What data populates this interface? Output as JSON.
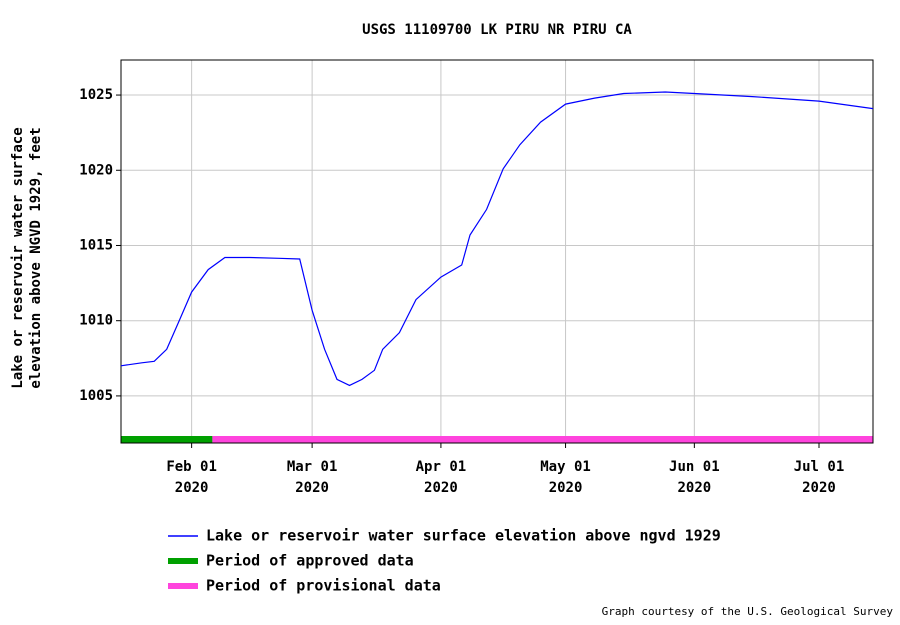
{
  "chart_data": {
    "type": "line",
    "title": "USGS 11109700 LK PIRU NR PIRU CA",
    "y_label": [
      "Lake or reservoir water surface",
      "elevation above NGVD 1929, feet"
    ],
    "x": [
      "2020-01-15",
      "2020-01-20",
      "2020-01-23",
      "2020-01-26",
      "2020-01-29",
      "2020-02-01",
      "2020-02-05",
      "2020-02-09",
      "2020-02-15",
      "2020-02-22",
      "2020-02-27",
      "2020-03-01",
      "2020-03-04",
      "2020-03-07",
      "2020-03-10",
      "2020-03-13",
      "2020-03-16",
      "2020-03-18",
      "2020-03-22",
      "2020-03-26",
      "2020-04-01",
      "2020-04-06",
      "2020-04-08",
      "2020-04-12",
      "2020-04-16",
      "2020-04-20",
      "2020-04-25",
      "2020-05-01",
      "2020-05-08",
      "2020-05-15",
      "2020-05-25",
      "2020-06-01",
      "2020-06-15",
      "2020-07-01",
      "2020-07-14"
    ],
    "series": [
      {
        "name": "Lake or reservoir water surface elevation above ngvd 1929",
        "color": "#0000ff",
        "values": [
          1007.0,
          1007.2,
          1007.3,
          1008.1,
          1010.0,
          1011.9,
          1013.4,
          1014.2,
          1014.2,
          1014.15,
          1014.1,
          1010.7,
          1008.1,
          1006.1,
          1005.7,
          1006.1,
          1006.7,
          1008.1,
          1009.2,
          1011.4,
          1012.9,
          1013.7,
          1015.7,
          1017.4,
          1020.1,
          1021.7,
          1023.2,
          1024.4,
          1024.8,
          1025.1,
          1025.2,
          1025.1,
          1024.9,
          1024.6,
          1024.1
        ]
      }
    ],
    "periods": [
      {
        "name": "Period of approved data",
        "color": "#00a000",
        "start": "2020-01-15",
        "end": "2020-02-06"
      },
      {
        "name": "Period of provisional data",
        "color": "#ff44dd",
        "start": "2020-02-06",
        "end": "2020-07-14"
      }
    ],
    "xlim": [
      "2020-01-15",
      "2020-07-14"
    ],
    "xticks": [
      {
        "value": "2020-02-01",
        "label": [
          "Feb 01",
          "2020"
        ]
      },
      {
        "value": "2020-03-01",
        "label": [
          "Mar 01",
          "2020"
        ]
      },
      {
        "value": "2020-04-01",
        "label": [
          "Apr 01",
          "2020"
        ]
      },
      {
        "value": "2020-05-01",
        "label": [
          "May 01",
          "2020"
        ]
      },
      {
        "value": "2020-06-01",
        "label": [
          "Jun 01",
          "2020"
        ]
      },
      {
        "value": "2020-07-01",
        "label": [
          "Jul 01",
          "2020"
        ]
      }
    ],
    "ylim": [
      1001.87,
      1027.33
    ],
    "yticks": [
      1005,
      1010,
      1015,
      1020,
      1025
    ],
    "grid": true,
    "credit": "Graph courtesy of the U.S. Geological Survey"
  }
}
